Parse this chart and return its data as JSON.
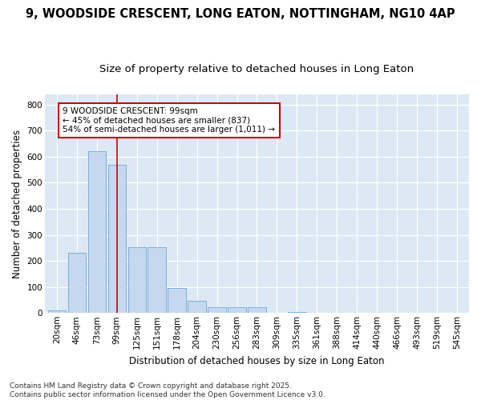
{
  "title_line1": "9, WOODSIDE CRESCENT, LONG EATON, NOTTINGHAM, NG10 4AP",
  "title_line2": "Size of property relative to detached houses in Long Eaton",
  "xlabel": "Distribution of detached houses by size in Long Eaton",
  "ylabel": "Number of detached properties",
  "categories": [
    "20sqm",
    "46sqm",
    "73sqm",
    "99sqm",
    "125sqm",
    "151sqm",
    "178sqm",
    "204sqm",
    "230sqm",
    "256sqm",
    "283sqm",
    "309sqm",
    "335sqm",
    "361sqm",
    "388sqm",
    "414sqm",
    "440sqm",
    "466sqm",
    "493sqm",
    "519sqm",
    "545sqm"
  ],
  "values": [
    10,
    232,
    620,
    570,
    252,
    252,
    97,
    47,
    22,
    22,
    22,
    0,
    5,
    0,
    0,
    0,
    0,
    0,
    0,
    0,
    0
  ],
  "bar_color": "#c5d8f0",
  "bar_edge_color": "#7bafd4",
  "vline_x": 3,
  "vline_color": "#cc0000",
  "annotation_text": "9 WOODSIDE CRESCENT: 99sqm\n← 45% of detached houses are smaller (837)\n54% of semi-detached houses are larger (1,011) →",
  "annotation_box_color": "#ffffff",
  "annotation_box_edge_color": "#cc0000",
  "ylim": [
    0,
    840
  ],
  "yticks": [
    0,
    100,
    200,
    300,
    400,
    500,
    600,
    700,
    800
  ],
  "fig_background_color": "#ffffff",
  "plot_background_color": "#dce9f5",
  "footer_line1": "Contains HM Land Registry data © Crown copyright and database right 2025.",
  "footer_line2": "Contains public sector information licensed under the Open Government Licence v3.0.",
  "title_fontsize": 10.5,
  "subtitle_fontsize": 9.5,
  "axis_label_fontsize": 8.5,
  "tick_fontsize": 7.5,
  "annotation_fontsize": 7.5,
  "footer_fontsize": 6.5
}
